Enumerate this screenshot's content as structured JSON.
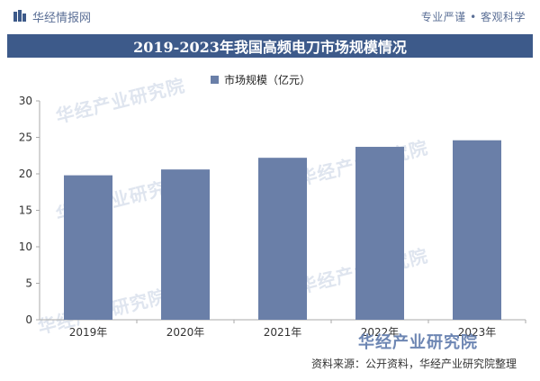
{
  "header": {
    "brand": "华经情报网",
    "tagline": "专业严谨 • 客观科学"
  },
  "watermark_text": "华经产业研究院",
  "bottom_brand": "华经产业研究院",
  "source": "资料来源：公开资料，华经产业研究院整理",
  "colors": {
    "bar": "#6a7fa8",
    "title_bg": "#3d5a8a",
    "axis": "#aaaaaa"
  },
  "chart_data": {
    "type": "bar",
    "title": "2019-2023年我国高频电刀市场规模情况",
    "categories": [
      "2019年",
      "2020年",
      "2021年",
      "2022年",
      "2023年"
    ],
    "series": [
      {
        "name": "市场规模（亿元）",
        "values": [
          19.8,
          20.6,
          22.2,
          23.7,
          24.6
        ]
      }
    ],
    "ylim": [
      0,
      30
    ],
    "yticks": [
      0,
      5,
      10,
      15,
      20,
      25,
      30
    ],
    "grid": false,
    "legend": "top-center"
  }
}
